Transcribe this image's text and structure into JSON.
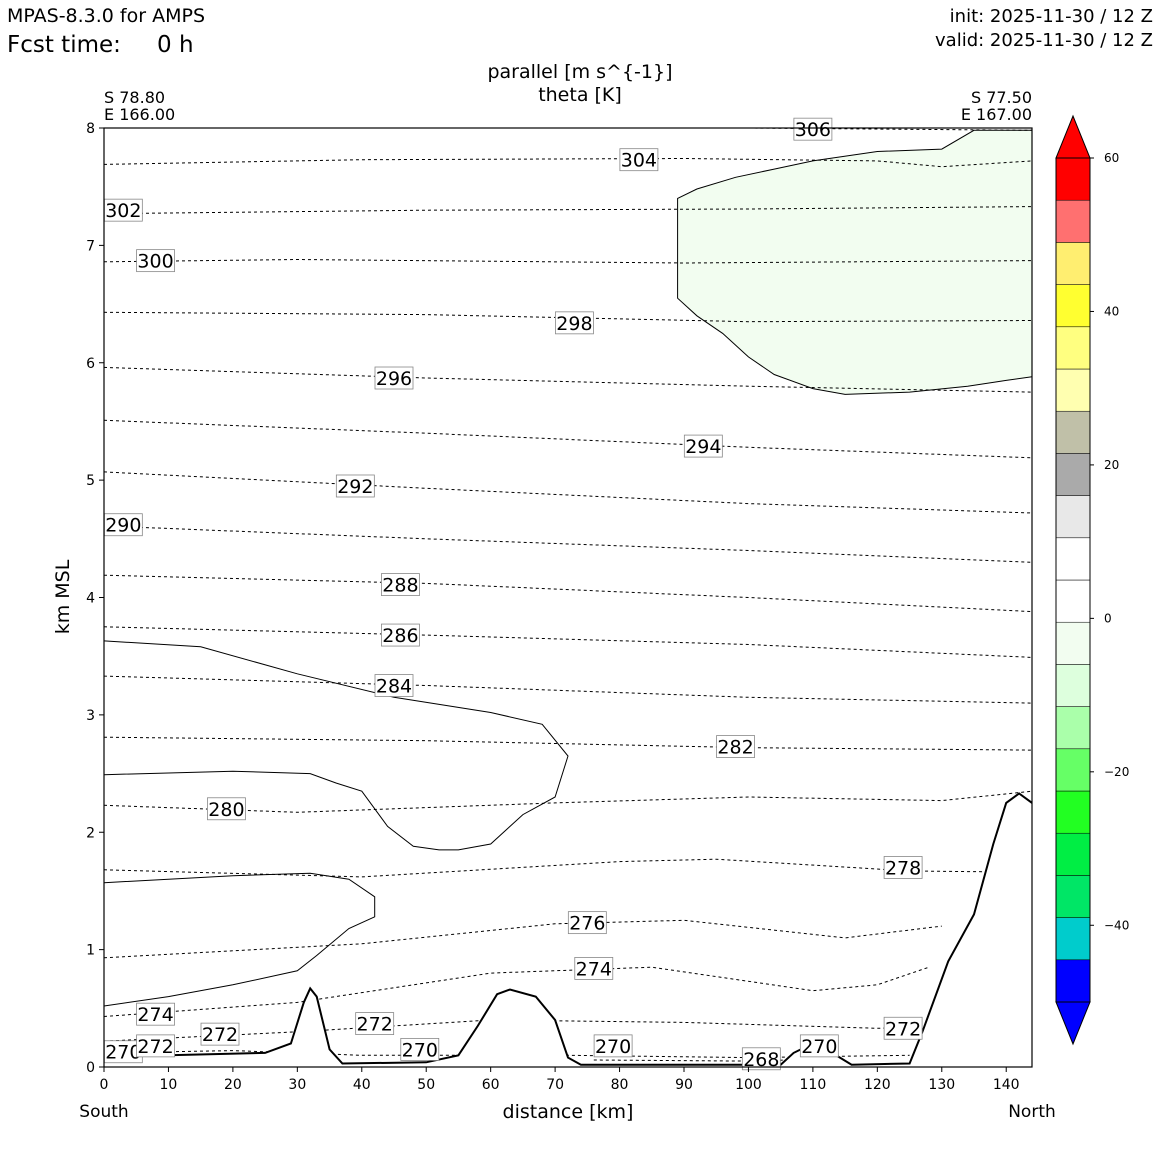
{
  "header": {
    "model": "MPAS-8.3.0 for AMPS",
    "fcst_label": "Fcst time:",
    "fcst_value": "0 h",
    "init": "init: 2025-11-30 / 12 Z",
    "valid": "valid: 2025-11-30 / 12 Z"
  },
  "chart_data": {
    "type": "contour",
    "title": "parallel [m s^{-1}]",
    "subtitle": "theta [K]",
    "xlabel": "distance [km]",
    "ylabel": "km MSL",
    "xlim": [
      0,
      144
    ],
    "ylim": [
      0,
      8
    ],
    "x_ticks": [
      "0",
      "10",
      "20",
      "30",
      "40",
      "50",
      "60",
      "70",
      "80",
      "90",
      "100",
      "110",
      "120",
      "130",
      "140"
    ],
    "y_ticks": [
      "0",
      "1",
      "2",
      "3",
      "4",
      "5",
      "6",
      "7",
      "8"
    ],
    "left_end": {
      "lat": "S 78.80",
      "lon": "E 166.00",
      "side": "South"
    },
    "right_end": {
      "lat": "S 77.50",
      "lon": "E 167.00",
      "side": "North"
    },
    "terrain": [
      [
        0,
        0.1
      ],
      [
        10,
        0.1
      ],
      [
        25,
        0.12
      ],
      [
        29,
        0.2
      ],
      [
        31,
        0.55
      ],
      [
        32,
        0.67
      ],
      [
        33,
        0.6
      ],
      [
        35,
        0.15
      ],
      [
        37,
        0.03
      ],
      [
        50,
        0.04
      ],
      [
        55,
        0.1
      ],
      [
        58,
        0.35
      ],
      [
        61,
        0.62
      ],
      [
        63,
        0.66
      ],
      [
        67,
        0.6
      ],
      [
        70,
        0.4
      ],
      [
        72,
        0.08
      ],
      [
        74,
        0.02
      ],
      [
        105,
        0.02
      ],
      [
        107,
        0.12
      ],
      [
        110,
        0.2
      ],
      [
        113,
        0.12
      ],
      [
        116,
        0.02
      ],
      [
        125,
        0.03
      ],
      [
        127,
        0.3
      ],
      [
        131,
        0.9
      ],
      [
        135,
        1.3
      ],
      [
        138,
        1.9
      ],
      [
        140,
        2.25
      ],
      [
        142,
        2.33
      ],
      [
        144,
        2.25
      ]
    ],
    "theta_contours": [
      {
        "label": "270",
        "points": [
          [
            0,
            0.12
          ],
          [
            20,
            0.14
          ],
          [
            40,
            0.1
          ],
          [
            72,
            0.1
          ],
          [
            100,
            0.08
          ],
          [
            125,
            0.1
          ]
        ],
        "label_at": [
          [
            3,
            0.13
          ],
          [
            49,
            0.15
          ],
          [
            79,
            0.18
          ],
          [
            111,
            0.18
          ]
        ]
      },
      {
        "label": "268",
        "points": [
          [
            76,
            0.06
          ],
          [
            100,
            0.05
          ],
          [
            106,
            0.06
          ]
        ],
        "label_at": [
          [
            102,
            0.07
          ]
        ]
      },
      {
        "label": "272",
        "points": [
          [
            0,
            0.22
          ],
          [
            30,
            0.3
          ],
          [
            60,
            0.4
          ],
          [
            90,
            0.38
          ],
          [
            120,
            0.33
          ],
          [
            130,
            0.35
          ]
        ],
        "label_at": [
          [
            8,
            0.18
          ],
          [
            18,
            0.28
          ],
          [
            42,
            0.37
          ],
          [
            124,
            0.33
          ]
        ]
      },
      {
        "label": "274",
        "points": [
          [
            0,
            0.43
          ],
          [
            30,
            0.55
          ],
          [
            60,
            0.8
          ],
          [
            85,
            0.85
          ],
          [
            110,
            0.65
          ],
          [
            120,
            0.7
          ],
          [
            128,
            0.85
          ]
        ],
        "label_at": [
          [
            8,
            0.45
          ],
          [
            76,
            0.84
          ]
        ]
      },
      {
        "label": "276",
        "points": [
          [
            0,
            0.93
          ],
          [
            40,
            1.05
          ],
          [
            70,
            1.22
          ],
          [
            90,
            1.25
          ],
          [
            115,
            1.1
          ],
          [
            130,
            1.2
          ]
        ],
        "label_at": [
          [
            75,
            1.23
          ]
        ]
      },
      {
        "label": "278",
        "points": [
          [
            0,
            1.68
          ],
          [
            40,
            1.62
          ],
          [
            80,
            1.75
          ],
          [
            95,
            1.77
          ],
          [
            125,
            1.67
          ],
          [
            144,
            1.66
          ]
        ],
        "label_at": [
          [
            124,
            1.7
          ]
        ]
      },
      {
        "label": "280",
        "points": [
          [
            0,
            2.23
          ],
          [
            30,
            2.17
          ],
          [
            70,
            2.25
          ],
          [
            100,
            2.3
          ],
          [
            130,
            2.27
          ],
          [
            144,
            2.35
          ]
        ],
        "label_at": [
          [
            19,
            2.2
          ]
        ]
      },
      {
        "label": "282",
        "points": [
          [
            0,
            2.81
          ],
          [
            50,
            2.78
          ],
          [
            100,
            2.72
          ],
          [
            144,
            2.7
          ]
        ],
        "label_at": [
          [
            98,
            2.73
          ]
        ]
      },
      {
        "label": "284",
        "points": [
          [
            0,
            3.33
          ],
          [
            50,
            3.25
          ],
          [
            100,
            3.15
          ],
          [
            144,
            3.1
          ]
        ],
        "label_at": [
          [
            45,
            3.25
          ]
        ]
      },
      {
        "label": "286",
        "points": [
          [
            0,
            3.75
          ],
          [
            50,
            3.68
          ],
          [
            100,
            3.6
          ],
          [
            144,
            3.49
          ]
        ],
        "label_at": [
          [
            46,
            3.68
          ]
        ]
      },
      {
        "label": "288",
        "points": [
          [
            0,
            4.19
          ],
          [
            50,
            4.12
          ],
          [
            100,
            4.0
          ],
          [
            144,
            3.88
          ]
        ],
        "label_at": [
          [
            46,
            4.11
          ]
        ]
      },
      {
        "label": "290",
        "points": [
          [
            0,
            4.61
          ],
          [
            50,
            4.5
          ],
          [
            100,
            4.4
          ],
          [
            144,
            4.3
          ]
        ],
        "label_at": [
          [
            3,
            4.62
          ]
        ]
      },
      {
        "label": "292",
        "points": [
          [
            0,
            5.07
          ],
          [
            50,
            4.93
          ],
          [
            100,
            4.8
          ],
          [
            144,
            4.72
          ]
        ],
        "label_at": [
          [
            39,
            4.95
          ]
        ]
      },
      {
        "label": "294",
        "points": [
          [
            0,
            5.51
          ],
          [
            50,
            5.4
          ],
          [
            100,
            5.28
          ],
          [
            144,
            5.19
          ]
        ],
        "label_at": [
          [
            93,
            5.29
          ]
        ]
      },
      {
        "label": "296",
        "points": [
          [
            0,
            5.96
          ],
          [
            50,
            5.87
          ],
          [
            100,
            5.8
          ],
          [
            144,
            5.75
          ]
        ],
        "label_at": [
          [
            45,
            5.87
          ]
        ]
      },
      {
        "label": "298",
        "points": [
          [
            0,
            6.43
          ],
          [
            50,
            6.41
          ],
          [
            100,
            6.35
          ],
          [
            144,
            6.36
          ]
        ],
        "label_at": [
          [
            73,
            6.34
          ]
        ]
      },
      {
        "label": "300",
        "points": [
          [
            0,
            6.86
          ],
          [
            30,
            6.88
          ],
          [
            90,
            6.85
          ],
          [
            144,
            6.87
          ]
        ],
        "label_at": [
          [
            8,
            6.87
          ]
        ]
      },
      {
        "label": "302",
        "points": [
          [
            0,
            7.27
          ],
          [
            50,
            7.3
          ],
          [
            100,
            7.31
          ],
          [
            144,
            7.33
          ]
        ],
        "label_at": [
          [
            3,
            7.3
          ]
        ]
      },
      {
        "label": "304",
        "points": [
          [
            0,
            7.69
          ],
          [
            40,
            7.73
          ],
          [
            90,
            7.74
          ],
          [
            120,
            7.72
          ],
          [
            130,
            7.67
          ],
          [
            144,
            7.72
          ]
        ],
        "label_at": [
          [
            83,
            7.73
          ]
        ]
      },
      {
        "label": "306",
        "points": [
          [
            100,
            8.0
          ],
          [
            144,
            7.98
          ]
        ],
        "label_at": [
          [
            110,
            7.99
          ]
        ]
      }
    ],
    "wind_contours": [
      {
        "level": "0",
        "points": [
          [
            0,
            3.63
          ],
          [
            15,
            3.58
          ],
          [
            30,
            3.35
          ],
          [
            45,
            3.15
          ],
          [
            60,
            3.02
          ],
          [
            68,
            2.92
          ],
          [
            72,
            2.65
          ],
          [
            70,
            2.3
          ],
          [
            65,
            2.15
          ],
          [
            60,
            1.9
          ],
          [
            55,
            1.85
          ],
          [
            52,
            1.85
          ],
          [
            48,
            1.88
          ],
          [
            44,
            2.05
          ],
          [
            40,
            2.35
          ],
          [
            36,
            2.42
          ],
          [
            32,
            2.5
          ],
          [
            20,
            2.52
          ],
          [
            0,
            2.49
          ]
        ]
      },
      {
        "level": "0",
        "points": [
          [
            0,
            1.57
          ],
          [
            20,
            1.63
          ],
          [
            32,
            1.65
          ],
          [
            38,
            1.6
          ],
          [
            42,
            1.45
          ],
          [
            42,
            1.28
          ],
          [
            38,
            1.18
          ],
          [
            33,
            0.95
          ],
          [
            30,
            0.82
          ],
          [
            20,
            0.7
          ],
          [
            10,
            0.6
          ],
          [
            0,
            0.52
          ]
        ]
      },
      {
        "level": "-10",
        "fill": "#f2fdf0",
        "points": [
          [
            144,
            7.98
          ],
          [
            135,
            7.98
          ],
          [
            130,
            7.82
          ],
          [
            120,
            7.8
          ],
          [
            110,
            7.72
          ],
          [
            104,
            7.65
          ],
          [
            98,
            7.58
          ],
          [
            92,
            7.48
          ],
          [
            89,
            7.4
          ],
          [
            89,
            6.55
          ],
          [
            92,
            6.4
          ],
          [
            96,
            6.25
          ],
          [
            100,
            6.05
          ],
          [
            104,
            5.9
          ],
          [
            110,
            5.78
          ],
          [
            115,
            5.73
          ],
          [
            125,
            5.75
          ],
          [
            134,
            5.8
          ],
          [
            140,
            5.85
          ],
          [
            144,
            5.88
          ]
        ]
      }
    ],
    "colorbar": {
      "ticks": [
        "60",
        "40",
        "20",
        "0",
        "−20",
        "−40"
      ],
      "tick_values": [
        60,
        40,
        20,
        0,
        -20,
        -40
      ],
      "range": [
        -50,
        60
      ],
      "step": 5,
      "colors": [
        "#0000ff",
        "#00cccc",
        "#00e666",
        "#00ee44",
        "#22ff22",
        "#66ff66",
        "#aaffaa",
        "#ddffdd",
        "#f2fdf0",
        "#ffffff",
        "#ffffff",
        "#e8e8e8",
        "#aaaaaa",
        "#c0c0a8",
        "#ffffb0",
        "#ffff80",
        "#ffff30",
        "#ffee70",
        "#ff7070",
        "#ff0000"
      ]
    }
  }
}
